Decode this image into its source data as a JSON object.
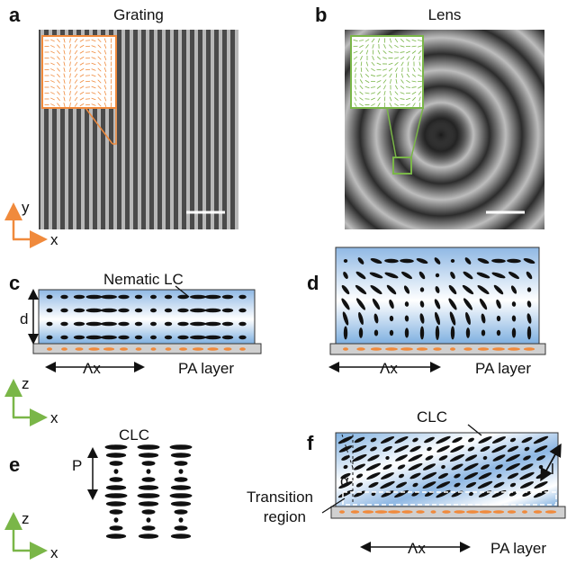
{
  "panels": {
    "a": {
      "label": "a",
      "title": "Grating"
    },
    "b": {
      "label": "b",
      "title": "Lens"
    },
    "c": {
      "label": "c",
      "lc_label": "Nematic LC",
      "thickness": "d",
      "period": "Λx",
      "layer": "PA layer"
    },
    "d": {
      "label": "d",
      "period": "Λx",
      "layer": "PA layer"
    },
    "e": {
      "label": "e",
      "lc_label": "CLC",
      "pitch": "P"
    },
    "f": {
      "label": "f",
      "lc_label": "CLC",
      "angle": "α",
      "length": "l",
      "region_lines": [
        "Transition",
        "region"
      ],
      "period": "Λx",
      "layer": "PA layer"
    }
  },
  "axes": {
    "xy": {
      "y": "y",
      "x": "x"
    },
    "xz_c": {
      "z": "z",
      "x": "x"
    },
    "xz_e": {
      "z": "z",
      "x": "x"
    }
  }
}
